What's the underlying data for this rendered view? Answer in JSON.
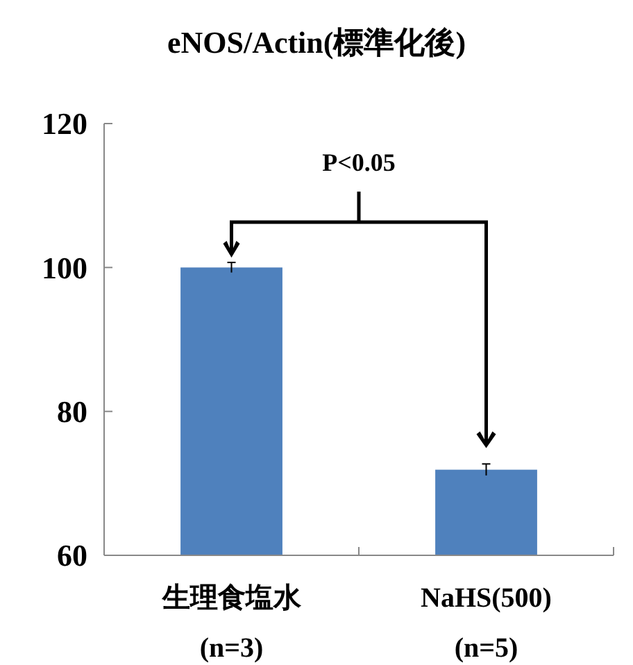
{
  "chart_data": {
    "type": "bar",
    "title": "eNOS/Actin(標準化後)",
    "categories": [
      "生理食塩水\n(n=3)",
      "NaHS(500)\n(n=5)"
    ],
    "values": [
      100,
      71.9
    ],
    "errors": [
      0.7,
      0.8
    ],
    "color": "#4f81bd",
    "ylim": [
      60,
      120
    ],
    "yticks": [
      60,
      80,
      100,
      120
    ],
    "grid": false,
    "annotations": [
      "P<0.05"
    ]
  }
}
